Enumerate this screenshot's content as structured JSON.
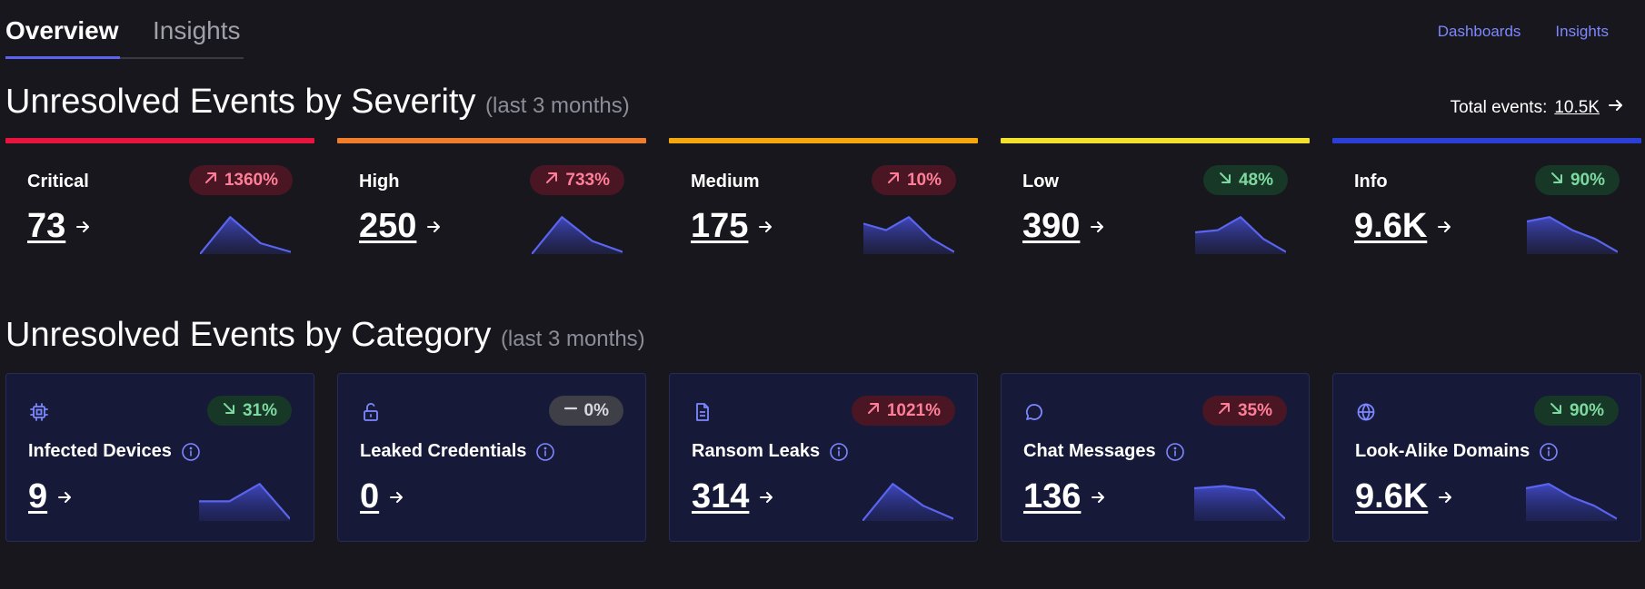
{
  "tabs": [
    {
      "label": "Overview"
    },
    {
      "label": "Insights"
    }
  ],
  "toplinks": [
    {
      "label": "Dashboards"
    },
    {
      "label": "Insights"
    }
  ],
  "severity_section": {
    "title": "Unresolved Events by Severity",
    "subtitle": "(last 3 months)",
    "total_label": "Total events:",
    "total_value": "10.5K"
  },
  "severity_cards": [
    {
      "label": "Critical",
      "value": "73",
      "trend": "1360%",
      "direction": "up",
      "color": "#e8143f",
      "spark": [
        0,
        0.85,
        0.25,
        0.05
      ]
    },
    {
      "label": "High",
      "value": "250",
      "trend": "733%",
      "direction": "up",
      "color": "#f07d2c",
      "spark": [
        0,
        0.85,
        0.3,
        0.05
      ]
    },
    {
      "label": "Medium",
      "value": "175",
      "trend": "10%",
      "direction": "up",
      "color": "#f5a70e",
      "spark": [
        0.7,
        0.55,
        0.85,
        0.35,
        0.05
      ]
    },
    {
      "label": "Low",
      "value": "390",
      "trend": "48%",
      "direction": "down",
      "color": "#f2e12c",
      "spark": [
        0.5,
        0.55,
        0.85,
        0.35,
        0.05
      ]
    },
    {
      "label": "Info",
      "value": "9.6K",
      "trend": "90%",
      "direction": "down",
      "color": "#2b3ed6",
      "spark": [
        0.75,
        0.85,
        0.55,
        0.35,
        0.05
      ]
    }
  ],
  "category_section": {
    "title": "Unresolved Events by Category",
    "subtitle": "(last 3 months)"
  },
  "category_cards": [
    {
      "label": "Infected Devices",
      "icon": "chip-icon",
      "value": "9",
      "trend": "31%",
      "direction": "down",
      "spark": [
        0.45,
        0.45,
        0.85,
        0.05
      ]
    },
    {
      "label": "Leaked Credentials",
      "icon": "unlock-icon",
      "value": "0",
      "trend": "0%",
      "direction": "flat",
      "spark": []
    },
    {
      "label": "Ransom Leaks",
      "icon": "document-icon",
      "value": "314",
      "trend": "1021%",
      "direction": "up",
      "spark": [
        0,
        0.85,
        0.35,
        0.05
      ]
    },
    {
      "label": "Chat Messages",
      "icon": "chat-bubble-icon",
      "value": "136",
      "trend": "35%",
      "direction": "up",
      "spark": [
        0.75,
        0.8,
        0.7,
        0.05
      ]
    },
    {
      "label": "Look-Alike Domains",
      "icon": "globe-icon",
      "value": "9.6K",
      "trend": "90%",
      "direction": "down",
      "spark": [
        0.75,
        0.85,
        0.55,
        0.35,
        0.05
      ]
    }
  ],
  "colors": {
    "accent": "#5b63f0",
    "link": "#7d87ff",
    "spark_line": "#5a64ee"
  }
}
